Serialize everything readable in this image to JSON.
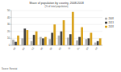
{
  "chart_data": {
    "type": "bar",
    "title": "Share of population by country, 2008-2018",
    "subtitle": "(% of total population)",
    "categories": [
      "BE",
      "BG",
      "CZ",
      "DK",
      "DE",
      "EE",
      "IE",
      "EL",
      "ES",
      "FR"
    ],
    "series": [
      {
        "name": "2008",
        "color": "#b0b0b0",
        "values": [
          8,
          10,
          6,
          12,
          9,
          14,
          11,
          7,
          9,
          4
        ]
      },
      {
        "name": "2013",
        "color": "#404040",
        "values": [
          5,
          24,
          15,
          10,
          18,
          20,
          16,
          12,
          10,
          6
        ]
      },
      {
        "name": "2018",
        "color": "#d9a21b",
        "values": [
          14,
          22,
          20,
          12,
          30,
          36,
          48,
          26,
          18,
          10
        ]
      }
    ],
    "ylim": [
      0,
      50
    ],
    "yticks": [
      0,
      10,
      20,
      30,
      40,
      50
    ],
    "grid": true,
    "legend": "right",
    "footnote": "Source: Eurostat"
  }
}
